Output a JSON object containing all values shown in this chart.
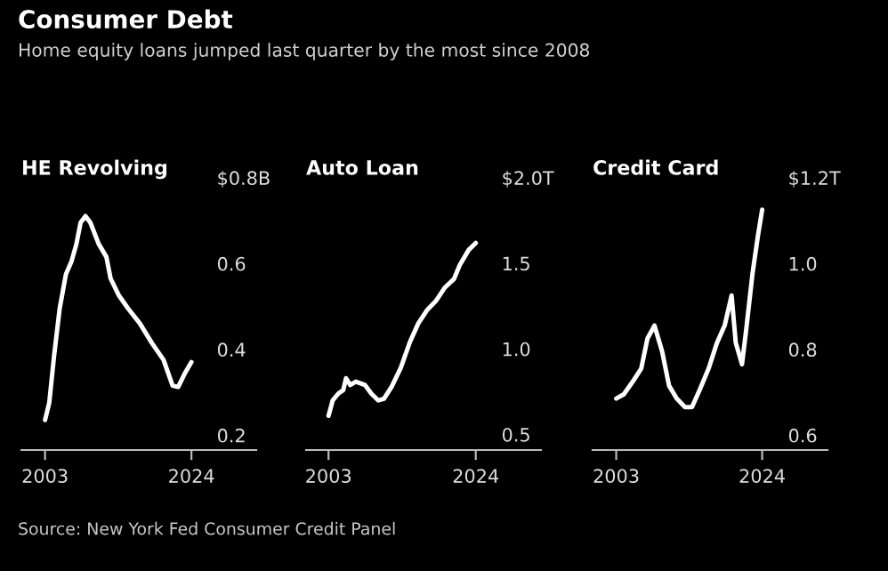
{
  "chart_data": [
    {
      "type": "other",
      "title": "Consumer Debt",
      "subtitle": "Home equity loans jumped last quarter by the most since 2008",
      "annotations": [
        "Source: New York Fed Consumer Credit Panel"
      ]
    },
    {
      "type": "line",
      "title": "HE Revolving",
      "color": "#ffffff",
      "grid": false,
      "legend": false,
      "x": [
        2003.0,
        2003.6,
        2004.3,
        2005.1,
        2006.0,
        2006.8,
        2007.5,
        2008.1,
        2008.8,
        2009.5,
        2010.7,
        2011.8,
        2012.4,
        2013.6,
        2014.9,
        2016.6,
        2018.3,
        2020.0,
        2021.3,
        2022.1,
        2023.0,
        2024.0
      ],
      "values": [
        0.24,
        0.28,
        0.39,
        0.5,
        0.58,
        0.61,
        0.65,
        0.7,
        0.715,
        0.7,
        0.65,
        0.62,
        0.57,
        0.53,
        0.5,
        0.465,
        0.42,
        0.38,
        0.32,
        0.317,
        0.347,
        0.375
      ],
      "xlim": [
        1999.6,
        2033.3
      ],
      "xticks": [
        2003,
        2024
      ],
      "ylim": [
        0.17,
        0.8
      ],
      "yticks": [
        0.2,
        0.4,
        0.6,
        {
          "value": 0.8,
          "label": "$0.8B"
        }
      ]
    },
    {
      "type": "line",
      "title": "Auto Loan",
      "color": "#ffffff",
      "grid": false,
      "legend": false,
      "x": [
        2003.0,
        2003.6,
        2004.4,
        2005.1,
        2005.5,
        2006.1,
        2006.9,
        2008.2,
        2009.1,
        2010.1,
        2010.9,
        2012.0,
        2013.3,
        2014.6,
        2015.8,
        2017.1,
        2018.3,
        2019.6,
        2020.9,
        2021.7,
        2023.0,
        2024.0
      ],
      "values": [
        0.62,
        0.71,
        0.75,
        0.77,
        0.84,
        0.8,
        0.82,
        0.8,
        0.75,
        0.71,
        0.72,
        0.79,
        0.9,
        1.05,
        1.16,
        1.24,
        1.29,
        1.37,
        1.42,
        1.5,
        1.59,
        1.63
      ],
      "xlim": [
        1999.8,
        2033.3
      ],
      "xticks": [
        2003,
        2024
      ],
      "ylim": [
        0.42,
        2.0
      ],
      "yticks": [
        0.5,
        {
          "value": 1.0,
          "label": "1.0"
        },
        1.5,
        {
          "value": 2.0,
          "label": "$2.0T"
        }
      ]
    },
    {
      "type": "line",
      "title": "Credit Card",
      "color": "#ffffff",
      "grid": false,
      "legend": false,
      "x": [
        2003.0,
        2004.1,
        2005.4,
        2006.6,
        2007.5,
        2008.5,
        2009.6,
        2010.6,
        2011.7,
        2012.9,
        2013.9,
        2015.0,
        2016.3,
        2017.5,
        2018.6,
        2019.6,
        2020.2,
        2021.1,
        2021.7,
        2022.6,
        2023.4,
        2024.0
      ],
      "values": [
        0.69,
        0.7,
        0.73,
        0.76,
        0.83,
        0.86,
        0.8,
        0.72,
        0.69,
        0.67,
        0.67,
        0.71,
        0.76,
        0.82,
        0.86,
        0.93,
        0.82,
        0.77,
        0.85,
        0.98,
        1.07,
        1.13
      ],
      "xlim": [
        1999.6,
        2033.4
      ],
      "xticks": [
        2003,
        2024
      ],
      "ylim": [
        0.57,
        1.2
      ],
      "yticks": [
        0.6,
        0.8,
        {
          "value": 1.0,
          "label": "1.0"
        },
        {
          "value": 1.2,
          "label": "$1.2T"
        }
      ]
    }
  ]
}
